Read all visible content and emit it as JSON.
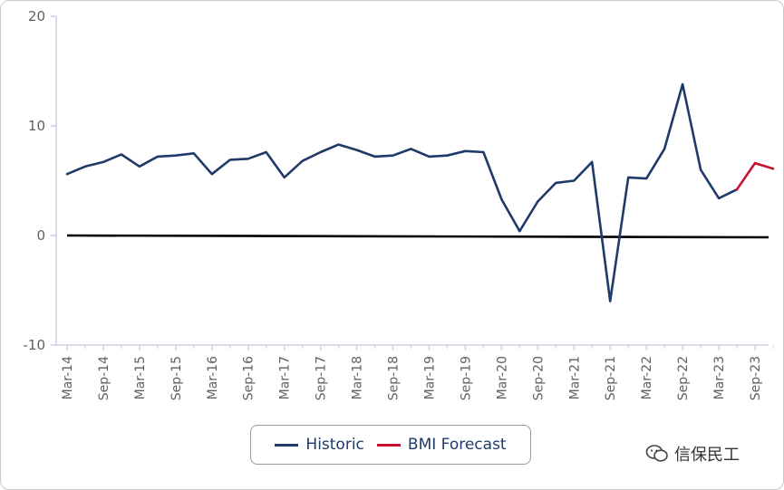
{
  "chart_data": {
    "type": "line",
    "title": "",
    "xlabel": "",
    "ylabel": "",
    "ylim": [
      -10,
      20
    ],
    "y_ticks": [
      20,
      10,
      0,
      -10
    ],
    "grid": false,
    "legend_position": "bottom-center",
    "x_tick_labels": [
      "Mar-14",
      "Sep-14",
      "Mar-15",
      "Sep-15",
      "Mar-16",
      "Sep-16",
      "Mar-17",
      "Sep-17",
      "Mar-18",
      "Sep-18",
      "Mar-19",
      "Sep-19",
      "Mar-20",
      "Sep-20",
      "Mar-21",
      "Sep-21",
      "Mar-22",
      "Sep-22",
      "Mar-23",
      "Sep-23"
    ],
    "series": [
      {
        "name": "Historic",
        "color": "#1f3a68",
        "x": [
          "Mar-14",
          "Jun-14",
          "Sep-14",
          "Dec-14",
          "Mar-15",
          "Jun-15",
          "Sep-15",
          "Dec-15",
          "Mar-16",
          "Jun-16",
          "Sep-16",
          "Dec-16",
          "Mar-17",
          "Jun-17",
          "Sep-17",
          "Dec-17",
          "Mar-18",
          "Jun-18",
          "Sep-18",
          "Dec-18",
          "Mar-19",
          "Jun-19",
          "Sep-19",
          "Dec-19",
          "Mar-20",
          "Jun-20",
          "Sep-20",
          "Dec-20",
          "Mar-21",
          "Jun-21",
          "Sep-21",
          "Dec-21",
          "Mar-22",
          "Jun-22",
          "Sep-22",
          "Dec-22",
          "Mar-23",
          "Jun-23"
        ],
        "values": [
          5.6,
          6.3,
          6.7,
          7.4,
          6.3,
          7.2,
          7.3,
          7.5,
          5.6,
          6.9,
          7.0,
          7.6,
          5.3,
          6.8,
          7.6,
          8.3,
          7.8,
          7.2,
          7.3,
          7.9,
          7.2,
          7.3,
          7.7,
          7.6,
          3.3,
          0.4,
          3.1,
          4.8,
          5.0,
          6.7,
          -6.0,
          5.3,
          5.2,
          7.9,
          13.8,
          6.0,
          3.4,
          4.2
        ]
      },
      {
        "name": "BMI Forecast",
        "color": "#c8102e",
        "x": [
          "Jun-23",
          "Sep-23",
          "Dec-23"
        ],
        "values": [
          4.2,
          6.6,
          6.1
        ]
      }
    ],
    "reference_line": {
      "value": 0,
      "color": "#000000"
    }
  },
  "watermark": {
    "text": "信保民工",
    "icon": "wechat-icon"
  }
}
